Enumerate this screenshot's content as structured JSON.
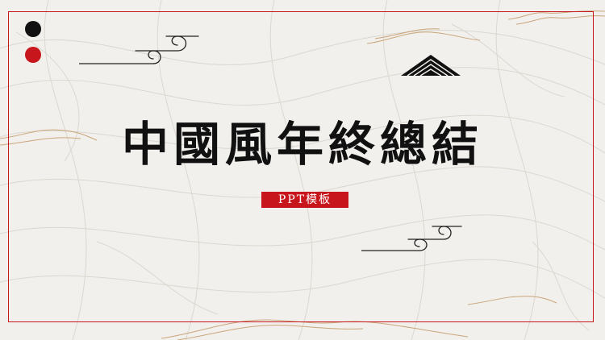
{
  "slide": {
    "title": "中國風年終總結",
    "subtitle": "PPT模板"
  },
  "colors": {
    "accent_red": "#c8161d",
    "ink_black": "#111111",
    "paper": "#f2f0ec",
    "gold_line": "#c9a57a"
  },
  "icons": {
    "cloud": "auspicious-cloud-icon",
    "mountain": "mountain-icon"
  }
}
